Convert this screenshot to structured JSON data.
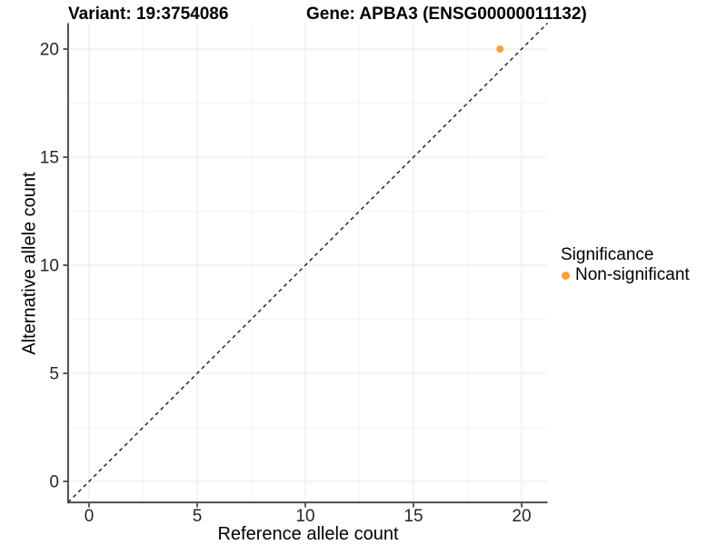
{
  "title": {
    "variant": "Variant: 19:3754086",
    "gene": "Gene: APBA3 (ENSG00000011132)"
  },
  "axes": {
    "x": {
      "label": "Reference allele count",
      "ticks": [
        "0",
        "5",
        "10",
        "15",
        "20"
      ]
    },
    "y": {
      "label": "Alternative allele count",
      "ticks": [
        "0",
        "5",
        "10",
        "15",
        "20"
      ]
    }
  },
  "legend": {
    "title": "Significance",
    "items": [
      {
        "label": "Non-significant",
        "color": "#F9A432",
        "marker": "circle-icon"
      }
    ]
  },
  "colors": {
    "point": "#F9A432",
    "major_grid": "#e8e8e8",
    "minor_grid": "#f4f4f4",
    "axis_line": "#4d4d4d",
    "tick_mark": "#333333",
    "tick_label": "#262626",
    "reference_line": "#1a1a1a",
    "background": "#ffffff"
  },
  "chart_data": {
    "type": "scatter",
    "title": "Variant: 19:3754086   Gene: APBA3 (ENSG00000011132)",
    "xlabel": "Reference allele count",
    "ylabel": "Alternative allele count",
    "xlim": [
      -1,
      21.2
    ],
    "ylim": [
      -1,
      21.2
    ],
    "x_ticks": [
      0,
      5,
      10,
      15,
      20
    ],
    "y_ticks": [
      0,
      5,
      10,
      15,
      20
    ],
    "x_minor_ticks": [
      2.5,
      7.5,
      12.5,
      17.5
    ],
    "y_minor_ticks": [
      2.5,
      7.5,
      12.5,
      17.5
    ],
    "grid": true,
    "legend_position": "right",
    "series": [
      {
        "name": "Non-significant",
        "color": "#F9A432",
        "points": [
          {
            "x": 19,
            "y": 20
          }
        ]
      }
    ],
    "reference_line": {
      "kind": "identity",
      "equation": "y = x",
      "style": "dashed",
      "color": "#1a1a1a"
    }
  }
}
